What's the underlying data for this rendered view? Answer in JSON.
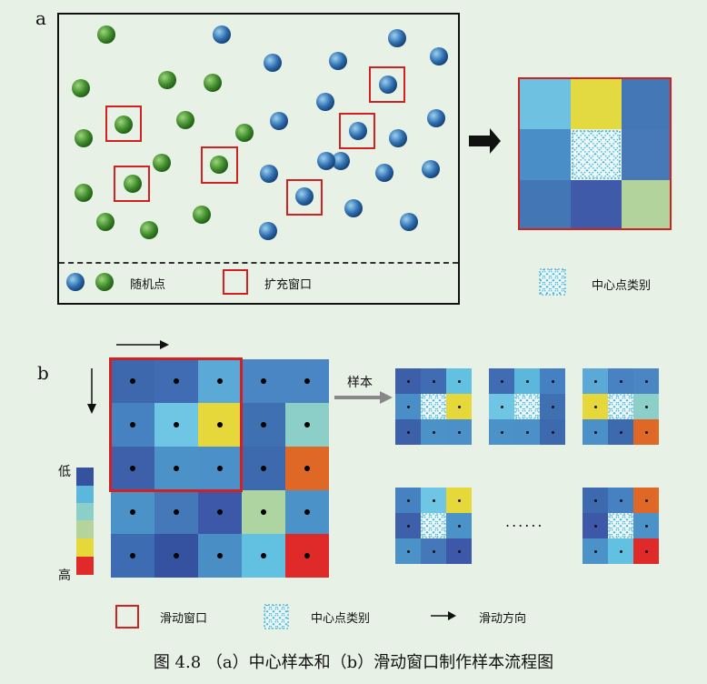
{
  "panel_a": {
    "label": "a",
    "legend_random_points": "随机点",
    "legend_expand_window": "扩充窗口",
    "legend_center_class": "中心点类别"
  },
  "panel_b": {
    "label": "b",
    "sample_label": "样本",
    "low_label": "低",
    "high_label": "高",
    "ellipsis": "......",
    "legend_sliding_window": "滑动窗口",
    "legend_center_class": "中心点类别",
    "legend_sliding_direction": "滑动方向"
  },
  "colors": {
    "green_point": "#3a8a2a",
    "blue_point": "#2f6fb0",
    "red_frame": "#d32020",
    "scale": [
      "#3552a0",
      "#5bb8dc",
      "#8ccfc8",
      "#b4d49c",
      "#e6d83a",
      "#e02a2a"
    ]
  },
  "caption": "图 4.8 （a）中心样本和（b）滑动窗口制作样本流程图"
}
